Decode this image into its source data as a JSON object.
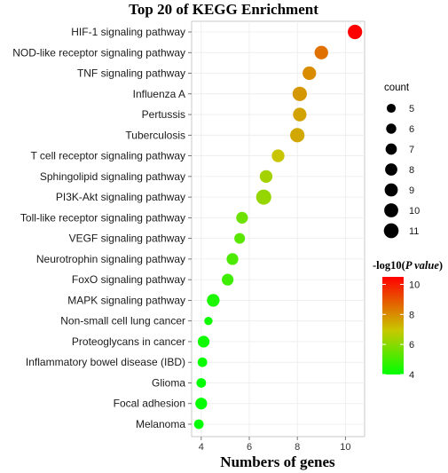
{
  "chart_data": {
    "type": "scatter",
    "title": "Top 20 of KEGG Enrichment",
    "xlabel": "Numbers of genes",
    "ylabel": "",
    "xlim": [
      3.6,
      10.8
    ],
    "xticks": [
      4,
      6,
      8,
      10
    ],
    "grid": true,
    "categories": [
      "HIF-1 signaling pathway",
      "NOD-like receptor signaling pathway",
      "TNF signaling pathway",
      "Influenza A",
      "Pertussis",
      "Tuberculosis",
      "T cell receptor signaling pathway",
      "Sphingolipid signaling pathway",
      "PI3K-Akt signaling pathway",
      "Toll-like receptor signaling pathway",
      "VEGF signaling pathway",
      "Neurotrophin signaling pathway",
      "FoxO signaling pathway",
      "MAPK signaling pathway",
      "Non-small cell lung cancer",
      "Proteoglycans in cancer",
      "Inflammatory bowel disease (IBD)",
      "Glioma",
      "Focal adhesion",
      "Melanoma"
    ],
    "x": [
      10.4,
      9.0,
      8.5,
      8.1,
      8.1,
      8.0,
      7.2,
      6.7,
      6.6,
      5.7,
      5.6,
      5.3,
      5.1,
      4.5,
      4.3,
      4.1,
      4.05,
      4.0,
      4.0,
      3.9
    ],
    "count": [
      9,
      8,
      8,
      9,
      8,
      9,
      7,
      7,
      10,
      6,
      5,
      6,
      6,
      7,
      3,
      6,
      4,
      4,
      6,
      4
    ],
    "neg_log10_p": [
      10.5,
      8.5,
      8.0,
      7.8,
      7.6,
      7.5,
      7.0,
      6.4,
      6.2,
      5.6,
      5.3,
      5.1,
      4.9,
      4.4,
      4.2,
      4.2,
      4.1,
      4.0,
      4.0,
      3.9
    ],
    "size_legend": {
      "title": "count",
      "values": [
        5,
        6,
        7,
        8,
        9,
        10,
        11
      ]
    },
    "color_legend": {
      "title_prefix": "-log10(",
      "title_italic": "P value",
      "title_suffix": ")",
      "ticks": [
        4,
        6,
        8,
        10
      ],
      "range": [
        4,
        10.5
      ],
      "colors": [
        "#00ff00",
        "#c8c800",
        "#ff0000"
      ]
    }
  }
}
